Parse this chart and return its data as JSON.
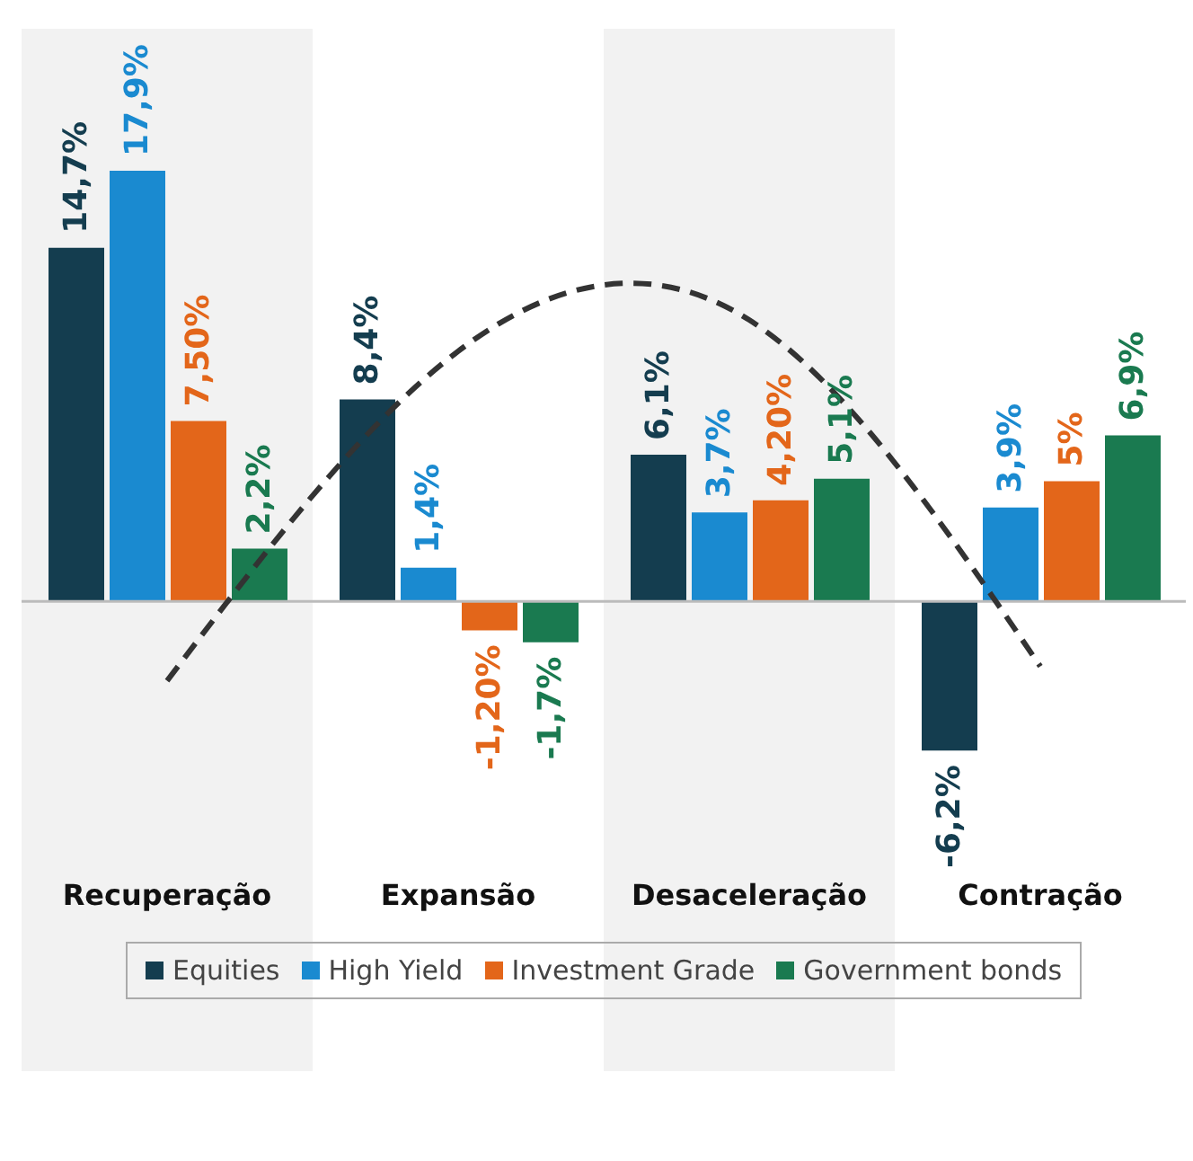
{
  "chart_data": {
    "type": "bar",
    "categories": [
      "Recuperação",
      "Expansão",
      "Desaceleração",
      "Contração"
    ],
    "series": [
      {
        "name": "Equities",
        "color": "#143d4f",
        "values": [
          14.7,
          8.4,
          6.1,
          -6.2
        ],
        "value_labels": [
          "14,7%",
          "8,4%",
          "6,1%",
          "-6,2%"
        ]
      },
      {
        "name": "High Yield",
        "color": "#1a8ad0",
        "values": [
          17.9,
          1.4,
          3.7,
          3.9
        ],
        "value_labels": [
          "17,9%",
          "1,4%",
          "3,7%",
          "3,9%"
        ]
      },
      {
        "name": "Investment Grade",
        "color": "#e3661a",
        "values": [
          7.5,
          -1.2,
          4.2,
          5
        ],
        "value_labels": [
          "7,50%",
          "-1,20%",
          "4,20%",
          "5%"
        ]
      },
      {
        "name": "Government bonds",
        "color": "#1a7a50",
        "values": [
          2.2,
          -1.7,
          5.1,
          6.9
        ],
        "value_labels": [
          "2,2%",
          "-1,7%",
          "5,1%",
          "6,9%"
        ]
      },
      {
        "type": "line",
        "color": "#333333",
        "line_style": "dashed",
        "values": [
          -3.3,
          10.4,
          11.7,
          -2.7
        ]
      }
    ],
    "bands": [
      {
        "axis": "x",
        "from": "Recuperação",
        "to": "Recuperação",
        "color": "#f2f2f2"
      },
      {
        "axis": "x",
        "from": "Desaceleração",
        "to": "Desaceleração",
        "color": "#f2f2f2"
      }
    ],
    "legend": "bottom",
    "tick_labels": "x"
  }
}
